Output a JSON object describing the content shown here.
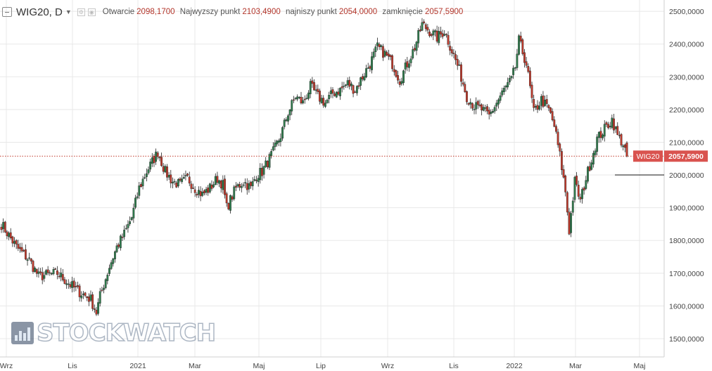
{
  "header": {
    "symbol": "WIG20, D",
    "ohlc": [
      {
        "label": "Otwarcie",
        "value": "2098,1700"
      },
      {
        "label": "Najwyzszy punkt",
        "value": "2103,4900"
      },
      {
        "label": "najniszy punkt",
        "value": "2054,0000"
      },
      {
        "label": "zamknięcie",
        "value": "2057,5900"
      }
    ]
  },
  "watermark": {
    "text": "STOCKWATCH",
    "icon": "bar-chart-icon"
  },
  "colors": {
    "up": "#2f7d4d",
    "down": "#c0392b",
    "grid": "#e8e8e8",
    "price_line": "#c0392b",
    "label_bg": "#d9534f"
  },
  "chart_data": {
    "type": "candlestick",
    "ylim": [
      1480,
      2530
    ],
    "y_ticks": [
      "1500,0000",
      "1600,0000",
      "1700,0000",
      "1800,0000",
      "1900,0000",
      "2000,0000",
      "2100,0000",
      "2200,0000",
      "2300,0000",
      "2400,0000",
      "2500,0000"
    ],
    "x_ticks": [
      "Wrz",
      "Lis",
      "2021",
      "Mar",
      "Maj",
      "Lip",
      "Wrz",
      "Lis",
      "2022",
      "Mar",
      "Maj"
    ],
    "current_price": {
      "label": "WIG20",
      "value": 2057.59,
      "value_text": "2057,5900"
    },
    "horizontal_line": 2000,
    "grid": true,
    "trend_anchors": [
      [
        0,
        1850
      ],
      [
        8,
        1780
      ],
      [
        15,
        1740
      ],
      [
        20,
        1690
      ],
      [
        30,
        1700
      ],
      [
        40,
        1650
      ],
      [
        48,
        1620
      ],
      [
        51,
        1580
      ],
      [
        53,
        1630
      ],
      [
        58,
        1720
      ],
      [
        62,
        1780
      ],
      [
        66,
        1820
      ],
      [
        70,
        1870
      ],
      [
        74,
        1960
      ],
      [
        78,
        2010
      ],
      [
        82,
        2050
      ],
      [
        84,
        2070
      ],
      [
        88,
        2010
      ],
      [
        92,
        1980
      ],
      [
        96,
        1970
      ],
      [
        100,
        1990
      ],
      [
        104,
        1960
      ],
      [
        108,
        1940
      ],
      [
        112,
        1960
      ],
      [
        116,
        1990
      ],
      [
        119,
        1970
      ],
      [
        121,
        1900
      ],
      [
        126,
        1960
      ],
      [
        130,
        1980
      ],
      [
        134,
        1960
      ],
      [
        137,
        2000
      ],
      [
        140,
        2010
      ],
      [
        143,
        2040
      ],
      [
        146,
        2070
      ],
      [
        150,
        2120
      ],
      [
        154,
        2190
      ],
      [
        158,
        2240
      ],
      [
        162,
        2220
      ],
      [
        166,
        2270
      ],
      [
        170,
        2240
      ],
      [
        174,
        2220
      ],
      [
        178,
        2250
      ],
      [
        182,
        2260
      ],
      [
        186,
        2280
      ],
      [
        190,
        2260
      ],
      [
        194,
        2300
      ],
      [
        198,
        2340
      ],
      [
        202,
        2390
      ],
      [
        206,
        2370
      ],
      [
        210,
        2340
      ],
      [
        214,
        2290
      ],
      [
        218,
        2340
      ],
      [
        222,
        2390
      ],
      [
        226,
        2460
      ],
      [
        230,
        2440
      ],
      [
        234,
        2420
      ],
      [
        238,
        2440
      ],
      [
        242,
        2380
      ],
      [
        246,
        2320
      ],
      [
        250,
        2240
      ],
      [
        254,
        2210
      ],
      [
        258,
        2200
      ],
      [
        262,
        2180
      ],
      [
        266,
        2220
      ],
      [
        270,
        2260
      ],
      [
        274,
        2290
      ],
      [
        276,
        2330
      ],
      [
        278,
        2410
      ],
      [
        282,
        2340
      ],
      [
        286,
        2190
      ],
      [
        290,
        2230
      ],
      [
        294,
        2200
      ],
      [
        297,
        2150
      ],
      [
        300,
        2060
      ],
      [
        303,
        1950
      ],
      [
        305,
        1830
      ],
      [
        308,
        1980
      ],
      [
        311,
        1920
      ],
      [
        314,
        1990
      ],
      [
        317,
        2050
      ],
      [
        320,
        2110
      ],
      [
        324,
        2140
      ],
      [
        328,
        2170
      ],
      [
        331,
        2120
      ],
      [
        334,
        2095
      ],
      [
        336,
        2058
      ]
    ]
  }
}
